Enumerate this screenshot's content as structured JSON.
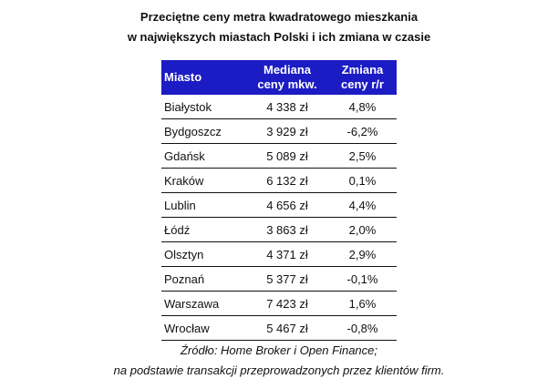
{
  "title": [
    "Przeciętne ceny metra kwadratowego mieszkania",
    "w największych miastach Polski i ich zmiana w czasie"
  ],
  "headers": [
    "Miasto",
    "Mediana ceny mkw.",
    "Zmiana ceny r/r"
  ],
  "header_color": "#1c1cc4",
  "rows": [
    [
      "Białystok",
      "4 338 zł",
      "4,8%"
    ],
    [
      "Bydgoszcz",
      "3 929 zł",
      "-6,2%"
    ],
    [
      "Gdańsk",
      "5 089 zł",
      "2,5%"
    ],
    [
      "Kraków",
      "6 132 zł",
      "0,1%"
    ],
    [
      "Lublin",
      "4 656 zł",
      "4,4%"
    ],
    [
      "Łódź",
      "3 863 zł",
      "2,0%"
    ],
    [
      "Olsztyn",
      "4 371 zł",
      "2,9%"
    ],
    [
      "Poznań",
      "5 377 zł",
      "-0,1%"
    ],
    [
      "Warszawa",
      "7 423 zł",
      "1,6%"
    ],
    [
      "Wrocław",
      "5 467 zł",
      "-0,8%"
    ]
  ],
  "footer": [
    "Źródło: Home Broker i Open Finance;",
    "na podstawie transakcji przeprowadzonych przez klientów firm."
  ]
}
